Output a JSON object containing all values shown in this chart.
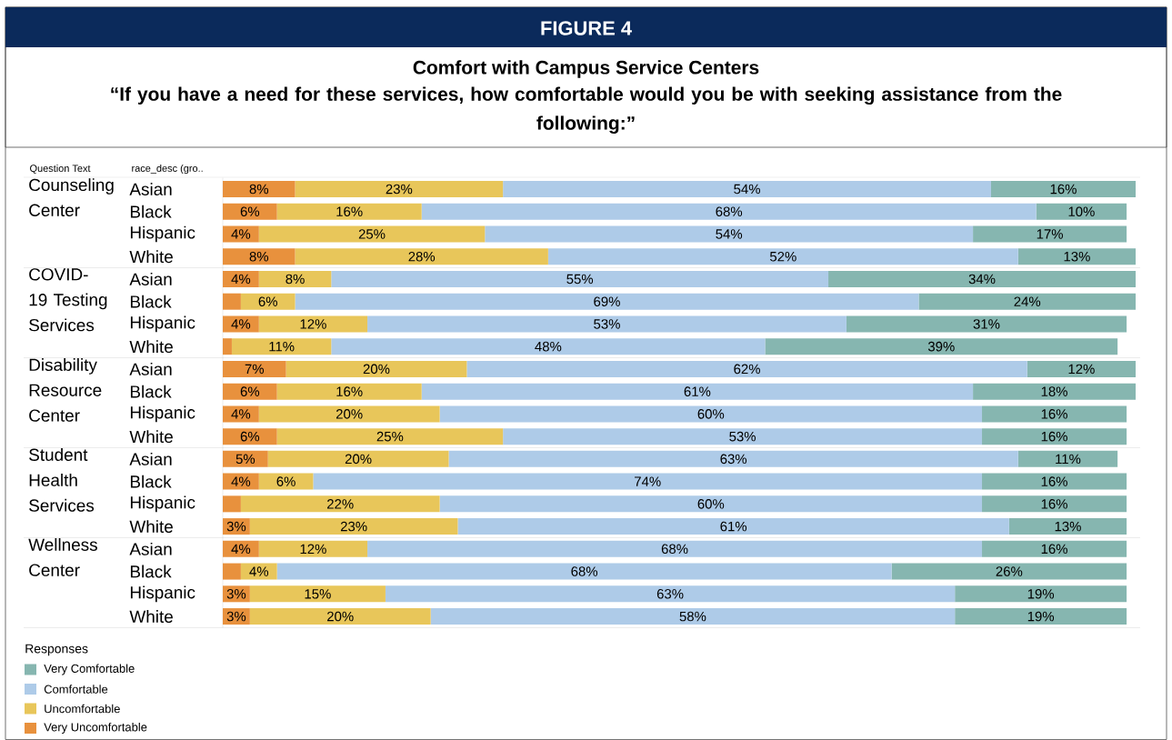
{
  "chart_data": {
    "type": "bar",
    "orientation": "horizontal",
    "stacked": true,
    "title": "Comfort with Campus Service Centers",
    "subtitle": "“If you have a need for these services, how comfortable would you be with seeking assistance from the following:”",
    "ylabel": "race_desc (gro..",
    "annotations": [
      "FIGURE 4",
      "Question Text",
      "Counseling Center",
      "COVID-19 Testing Services",
      "Disability Resource Center",
      "Student Health Services",
      "Wellness Center"
    ],
    "categories": [
      "Asian",
      "Black",
      "Hispanic",
      "White",
      "Asian",
      "Black",
      "Hispanic",
      "White",
      "Asian",
      "Black",
      "Hispanic",
      "White",
      "Asian",
      "Black",
      "Hispanic",
      "White",
      "Asian",
      "Black",
      "Hispanic",
      "White"
    ],
    "legend": "bottom left",
    "legend_title": "Responses",
    "series": [
      {
        "name": "Very Uncomfortable",
        "color": "#e8913d",
        "values": [
          8,
          6,
          4,
          8,
          4,
          2,
          4,
          1,
          7,
          6,
          4,
          6,
          5,
          4,
          2,
          3,
          4,
          2,
          3,
          3
        ],
        "value_labels": [
          "8%",
          "6%",
          "4%",
          "8%",
          "4%",
          null,
          "4%",
          null,
          "7%",
          "6%",
          "4%",
          "6%",
          "5%",
          "4%",
          null,
          "3%",
          "4%",
          null,
          "3%",
          "3%"
        ]
      },
      {
        "name": "Uncomfortable",
        "color": "#e8c65a",
        "values": [
          23,
          16,
          25,
          28,
          8,
          6,
          12,
          11,
          20,
          16,
          20,
          25,
          20,
          6,
          22,
          23,
          12,
          4,
          15,
          20
        ],
        "value_labels": [
          "23%",
          "16%",
          "25%",
          "28%",
          "8%",
          "6%",
          "12%",
          "11%",
          "20%",
          "16%",
          "20%",
          "25%",
          "20%",
          "6%",
          "22%",
          "23%",
          "12%",
          "4%",
          "15%",
          "20%"
        ]
      },
      {
        "name": "Comfortable",
        "color": "#aecbe8",
        "values": [
          54,
          68,
          54,
          52,
          55,
          69,
          53,
          48,
          62,
          61,
          60,
          53,
          63,
          74,
          60,
          61,
          68,
          68,
          63,
          58
        ],
        "value_labels": [
          "54%",
          "68%",
          "54%",
          "52%",
          "55%",
          "69%",
          "53%",
          "48%",
          "62%",
          "61%",
          "60%",
          "53%",
          "63%",
          "74%",
          "60%",
          "61%",
          "68%",
          "68%",
          "63%",
          "58%"
        ]
      },
      {
        "name": "Very Comfortable",
        "color": "#86b6b0",
        "values": [
          16,
          10,
          17,
          13,
          34,
          24,
          31,
          39,
          12,
          18,
          16,
          16,
          11,
          16,
          16,
          13,
          16,
          26,
          19,
          19
        ],
        "value_labels": [
          "16%",
          "10%",
          "17%",
          "13%",
          "34%",
          "24%",
          "31%",
          "39%",
          "12%",
          "18%",
          "16%",
          "16%",
          "11%",
          "16%",
          "16%",
          "13%",
          "16%",
          "26%",
          "19%",
          "19%"
        ]
      }
    ]
  }
}
